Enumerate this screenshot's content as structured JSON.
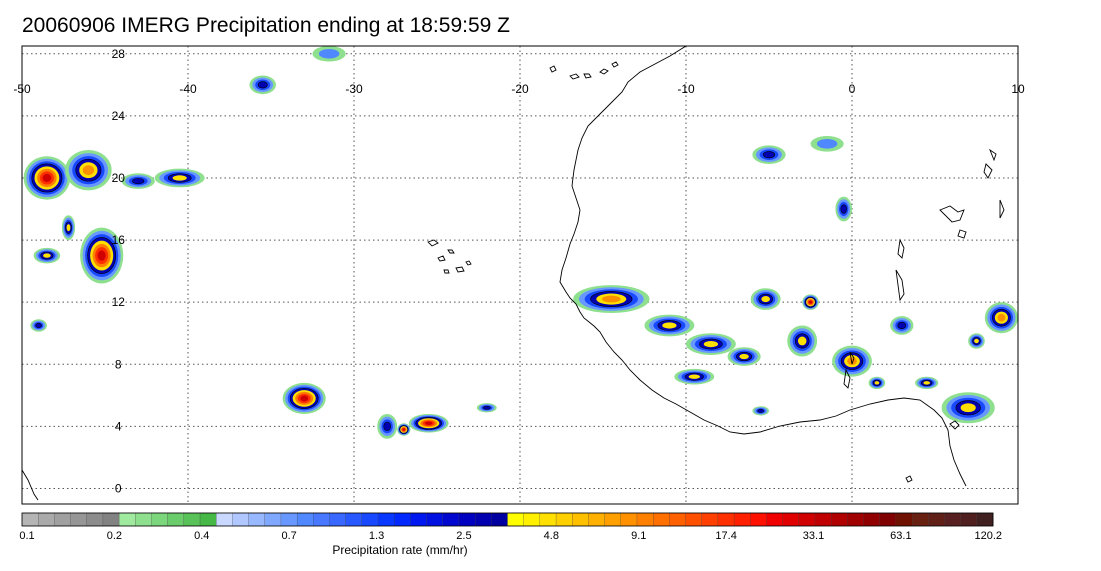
{
  "title": "20060906 IMERG Precipitation ending at 18:59:59 Z",
  "map": {
    "lon_range": [
      -50,
      10
    ],
    "lat_range": [
      -1,
      28.5
    ],
    "lon_ticks": [
      "-50",
      "-40",
      "-30",
      "-20",
      "-10",
      "0",
      "10"
    ],
    "lat_ticks": [
      "28",
      "24",
      "20",
      "16",
      "12",
      "8",
      "4",
      "0"
    ],
    "grid": true,
    "colors": {
      "coast": "#000000",
      "grid": "#555555",
      "frame": "#000000"
    }
  },
  "colorbar": {
    "title": "Precipitation rate (mm/hr)",
    "labels": [
      "0.1",
      "0.2",
      "0.4",
      "0.7",
      "1.3",
      "2.5",
      "4.8",
      "9.1",
      "17.4",
      "33.1",
      "63.1",
      "120.2"
    ],
    "segments": [
      "#b4b4b4",
      "#aaaaaa",
      "#a0a0a0",
      "#969696",
      "#8c8c8c",
      "#828282",
      "#a0eaa0",
      "#8ee08e",
      "#7cd67c",
      "#6acc6a",
      "#58c258",
      "#46b846",
      "#c8d8ff",
      "#b0c8ff",
      "#98b8ff",
      "#80a8ff",
      "#6898ff",
      "#5088ff",
      "#4878ff",
      "#3868ff",
      "#2858ff",
      "#1848ff",
      "#0838ff",
      "#0028ff",
      "#0018f0",
      "#0010e0",
      "#0008d0",
      "#0000c0",
      "#0000b0",
      "#0000a0",
      "#ffff00",
      "#fff000",
      "#ffe000",
      "#ffd000",
      "#ffc000",
      "#ffb000",
      "#ffa000",
      "#ff9000",
      "#ff8000",
      "#ff7000",
      "#ff6000",
      "#ff5000",
      "#ff4000",
      "#ff3000",
      "#ff2000",
      "#ff1000",
      "#f00000",
      "#e00000",
      "#d00000",
      "#c00000",
      "#b00000",
      "#a00000",
      "#900000",
      "#800000",
      "#701000",
      "#682010",
      "#602018",
      "#582020",
      "#502020",
      "#402020"
    ]
  },
  "precip_cells": [
    {
      "lon": -48.5,
      "lat": 20.0,
      "rx": 1.4,
      "ry": 1.4,
      "peak": "red"
    },
    {
      "lon": -46.0,
      "lat": 20.5,
      "rx": 1.4,
      "ry": 1.3,
      "peak": "orange"
    },
    {
      "lon": -45.2,
      "lat": 15.0,
      "rx": 1.3,
      "ry": 1.8,
      "peak": "red"
    },
    {
      "lon": -48.5,
      "lat": 15.0,
      "rx": 0.8,
      "ry": 0.5,
      "peak": "yellow"
    },
    {
      "lon": -47.2,
      "lat": 16.8,
      "rx": 0.4,
      "ry": 0.8,
      "peak": "yellow"
    },
    {
      "lon": -49.0,
      "lat": 10.5,
      "rx": 0.5,
      "ry": 0.4,
      "peak": "blue"
    },
    {
      "lon": -40.5,
      "lat": 20.0,
      "rx": 1.5,
      "ry": 0.6,
      "peak": "yellow"
    },
    {
      "lon": -43.0,
      "lat": 19.8,
      "rx": 1.0,
      "ry": 0.5,
      "peak": "blue"
    },
    {
      "lon": -33.0,
      "lat": 5.8,
      "rx": 1.3,
      "ry": 1.0,
      "peak": "red"
    },
    {
      "lon": -25.5,
      "lat": 4.2,
      "rx": 1.2,
      "ry": 0.6,
      "peak": "red"
    },
    {
      "lon": -28.0,
      "lat": 4.0,
      "rx": 0.6,
      "ry": 0.8,
      "peak": "blue"
    },
    {
      "lon": -27.0,
      "lat": 3.8,
      "rx": 0.4,
      "ry": 0.4,
      "peak": "red"
    },
    {
      "lon": -22.0,
      "lat": 5.2,
      "rx": 0.6,
      "ry": 0.3,
      "peak": "blue"
    },
    {
      "lon": -35.5,
      "lat": 26.0,
      "rx": 0.8,
      "ry": 0.6,
      "peak": "blue"
    },
    {
      "lon": -31.5,
      "lat": 28.0,
      "rx": 1.0,
      "ry": 0.5,
      "peak": "green"
    },
    {
      "lon": -14.5,
      "lat": 12.2,
      "rx": 2.3,
      "ry": 0.9,
      "peak": "orange"
    },
    {
      "lon": -11.0,
      "lat": 10.5,
      "rx": 1.5,
      "ry": 0.7,
      "peak": "yellow"
    },
    {
      "lon": -8.5,
      "lat": 9.3,
      "rx": 1.5,
      "ry": 0.7,
      "peak": "yellow"
    },
    {
      "lon": -9.5,
      "lat": 7.2,
      "rx": 1.2,
      "ry": 0.5,
      "peak": "yellow"
    },
    {
      "lon": -6.5,
      "lat": 8.5,
      "rx": 1.0,
      "ry": 0.6,
      "peak": "yellow"
    },
    {
      "lon": -3.0,
      "lat": 9.5,
      "rx": 0.9,
      "ry": 1.0,
      "peak": "yellow"
    },
    {
      "lon": -5.2,
      "lat": 12.2,
      "rx": 0.9,
      "ry": 0.7,
      "peak": "yellow"
    },
    {
      "lon": -2.5,
      "lat": 12.0,
      "rx": 0.5,
      "ry": 0.5,
      "peak": "red"
    },
    {
      "lon": 0.0,
      "lat": 8.2,
      "rx": 1.2,
      "ry": 1.0,
      "peak": "orange"
    },
    {
      "lon": 1.5,
      "lat": 6.8,
      "rx": 0.5,
      "ry": 0.4,
      "peak": "yellow"
    },
    {
      "lon": 3.0,
      "lat": 10.5,
      "rx": 0.7,
      "ry": 0.6,
      "peak": "blue"
    },
    {
      "lon": 7.0,
      "lat": 5.2,
      "rx": 1.6,
      "ry": 1.0,
      "peak": "yellow"
    },
    {
      "lon": 9.0,
      "lat": 11.0,
      "rx": 1.0,
      "ry": 1.0,
      "peak": "orange"
    },
    {
      "lon": 7.5,
      "lat": 9.5,
      "rx": 0.5,
      "ry": 0.5,
      "peak": "yellow"
    },
    {
      "lon": 4.5,
      "lat": 6.8,
      "rx": 0.7,
      "ry": 0.4,
      "peak": "yellow"
    },
    {
      "lon": -5.0,
      "lat": 21.5,
      "rx": 1.0,
      "ry": 0.6,
      "peak": "blue"
    },
    {
      "lon": -1.5,
      "lat": 22.2,
      "rx": 1.0,
      "ry": 0.5,
      "peak": "green"
    },
    {
      "lon": -0.5,
      "lat": 18.0,
      "rx": 0.5,
      "ry": 0.8,
      "peak": "blue"
    },
    {
      "lon": -5.5,
      "lat": 5.0,
      "rx": 0.5,
      "ry": 0.3,
      "peak": "blue"
    }
  ]
}
